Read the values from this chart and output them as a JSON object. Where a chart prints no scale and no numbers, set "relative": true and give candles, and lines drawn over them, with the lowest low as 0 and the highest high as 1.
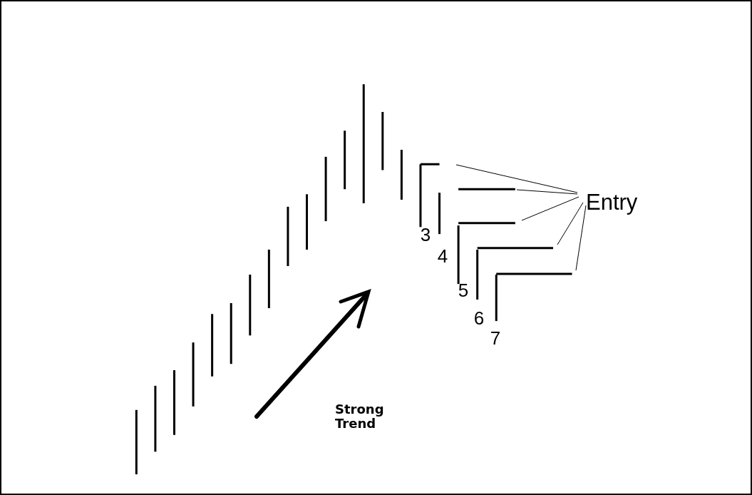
{
  "chart_data": {
    "type": "candlestick",
    "relative": true,
    "categories": [
      null,
      null,
      null,
      null,
      null,
      null,
      null,
      null,
      null,
      null,
      null,
      null,
      null,
      null,
      null,
      null,
      null,
      null,
      null,
      null,
      null,
      null,
      null,
      null
    ],
    "ohlc": [
      [
        0,
        0.165,
        0,
        0.165
      ],
      [
        0.058,
        0.227,
        0.058,
        0.227
      ],
      [
        0.101,
        0.267,
        0.101,
        0.267
      ],
      [
        0.174,
        0.338,
        0.174,
        0.338
      ],
      [
        0.251,
        0.411,
        0.251,
        0.411
      ],
      [
        0.283,
        0.439,
        0.283,
        0.439
      ],
      [
        0.356,
        0.512,
        0.356,
        0.512
      ],
      [
        0.426,
        0.576,
        0.426,
        0.576
      ],
      [
        0.534,
        0.686,
        0.534,
        0.686
      ],
      [
        0.576,
        0.718,
        0.576,
        0.718
      ],
      [
        0.649,
        0.814,
        0.649,
        0.814
      ],
      [
        0.731,
        0.881,
        0.731,
        0.881
      ],
      [
        0.695,
        1,
        0.695,
        1
      ],
      [
        0.78,
        0.929,
        0.78,
        0.929
      ],
      [
        0.704,
        0.832,
        0.704,
        0.832
      ],
      [
        0.634,
        0.795,
        0.634,
        0.795
      ],
      [
        0.616,
        0.722,
        0.616,
        0.722
      ],
      [
        0.488,
        0.638,
        0.488,
        0.638
      ],
      [
        0.448,
        0.576,
        0.448,
        0.576
      ],
      [
        0.393,
        0.512,
        0.393,
        0.512
      ],
      null,
      null,
      null,
      null
    ],
    "series": [
      {
        "type": "line",
        "color": "#000000",
        "values": [
          null,
          null,
          null,
          null,
          null,
          null,
          null,
          null,
          null,
          null,
          null,
          null,
          null,
          null,
          null,
          0.795,
          0.795,
          null,
          null,
          null,
          null,
          null,
          null,
          null
        ]
      },
      {
        "type": "line",
        "color": "#000000",
        "values": [
          null,
          null,
          null,
          null,
          null,
          null,
          null,
          null,
          null,
          null,
          null,
          null,
          null,
          null,
          null,
          null,
          null,
          0.731,
          0.731,
          0.731,
          0.731,
          null,
          null,
          null
        ]
      },
      {
        "type": "line",
        "color": "#000000",
        "values": [
          null,
          null,
          null,
          null,
          null,
          null,
          null,
          null,
          null,
          null,
          null,
          null,
          null,
          null,
          null,
          null,
          null,
          0.644,
          0.644,
          0.644,
          0.644,
          null,
          null,
          null
        ]
      },
      {
        "type": "line",
        "color": "#000000",
        "values": [
          null,
          null,
          null,
          null,
          null,
          null,
          null,
          null,
          null,
          null,
          null,
          null,
          null,
          null,
          null,
          null,
          null,
          null,
          0.58,
          0.58,
          0.58,
          0.58,
          0.58,
          null
        ]
      },
      {
        "type": "line",
        "color": "#000000",
        "values": [
          null,
          null,
          null,
          null,
          null,
          null,
          null,
          null,
          null,
          null,
          null,
          null,
          null,
          null,
          null,
          null,
          null,
          null,
          null,
          0.514,
          0.514,
          0.514,
          0.514,
          0.514
        ]
      }
    ],
    "annotations": [
      "Strong Trend",
      "Entry",
      "3",
      "4",
      "5",
      "6",
      "7"
    ]
  }
}
